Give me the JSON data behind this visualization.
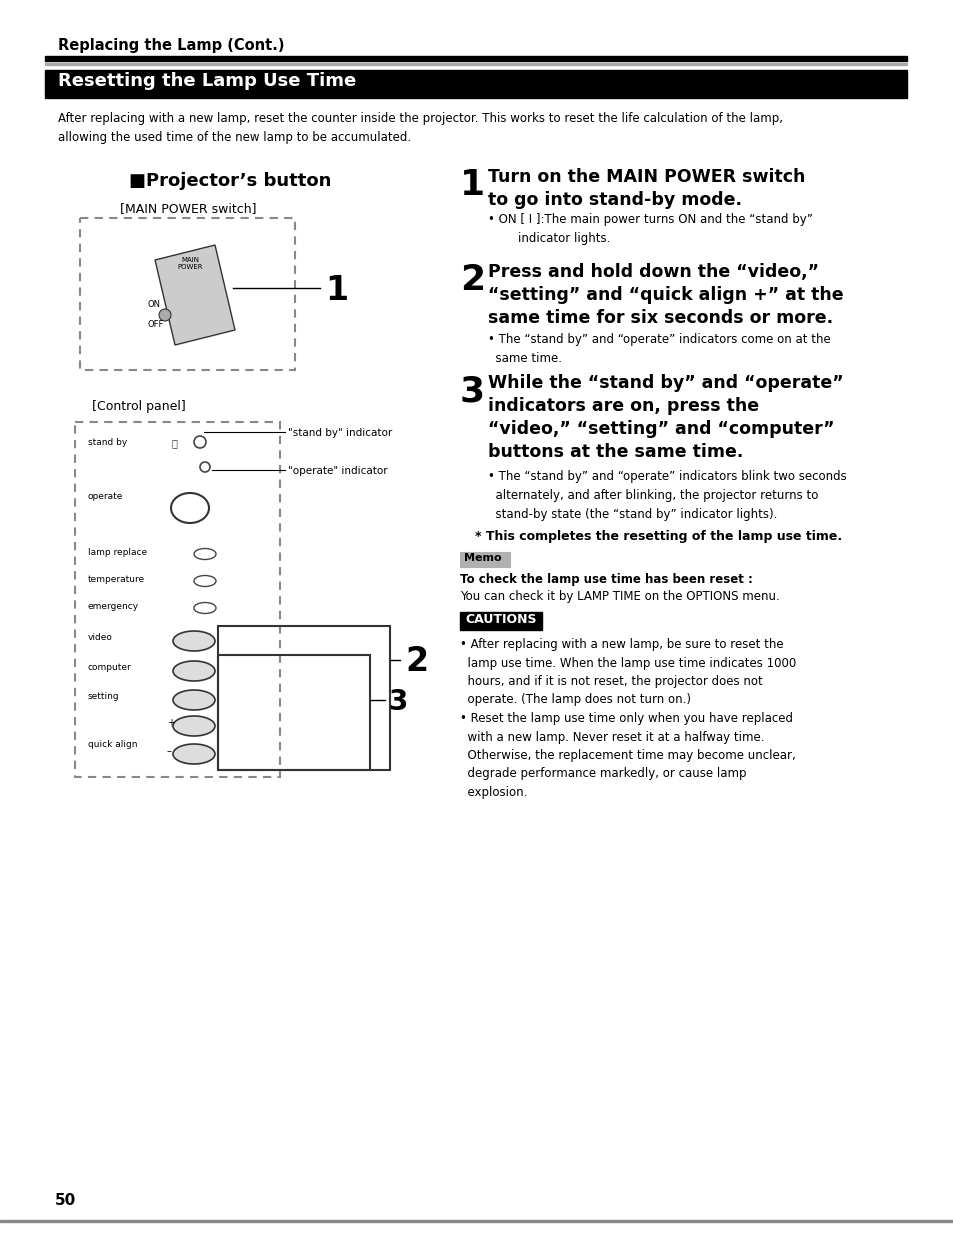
{
  "page_bg": "#ffffff",
  "top_title": "Replacing the Lamp (Cont.)",
  "section_title": "Resetting the Lamp Use Time",
  "section_bg": "#000000",
  "section_fg": "#ffffff",
  "intro_text": "After replacing with a new lamp, reset the counter inside the projector. This works to reset the life calculation of the lamp,\nallowing the used time of the new lamp to be accumulated.",
  "left_section_title": "■Projector’s button",
  "main_power_label": "[MAIN POWER switch]",
  "control_panel_label": "[Control panel]",
  "step1_num": "1",
  "step1_title": "Turn on the MAIN POWER switch\nto go into stand-by mode.",
  "step1_bullet": "• ON [ I ]:The main power turns ON and the “stand by”\n        indicator lights.",
  "step2_num": "2",
  "step2_title": "Press and hold down the “video,”\n“setting” and “quick align +” at the\nsame time for six seconds or more.",
  "step2_bullet": "• The “stand by” and “operate” indicators come on at the\n  same time.",
  "step3_num": "3",
  "step3_title": "While the “stand by” and “operate”\nindicators are on, press the\n“video,” “setting” and “computer”\nbuttons at the same time.",
  "step3_bullet": "• The “stand by” and “operate” indicators blink two seconds\n  alternately, and after blinking, the projector returns to\n  stand-by state (the “stand by” indicator lights).",
  "complete_text": "* This completes the resetting of the lamp use time.",
  "memo_label": "Memo",
  "memo_title": "To check the lamp use time has been reset :",
  "memo_body": "You can check it by LAMP TIME on the OPTIONS menu.",
  "cautions_label": "CAUTIONS",
  "caution1": "• After replacing with a new lamp, be sure to reset the\n  lamp use time. When the lamp use time indicates 1000\n  hours, and if it is not reset, the projector does not\n  operate. (The lamp does not turn on.)",
  "caution2": "• Reset the lamp use time only when you have replaced\n  with a new lamp. Never reset it at a halfway time.\n  Otherwise, the replacement time may become unclear,\n  degrade performance markedly, or cause lamp\n  explosion.",
  "page_number": "50"
}
